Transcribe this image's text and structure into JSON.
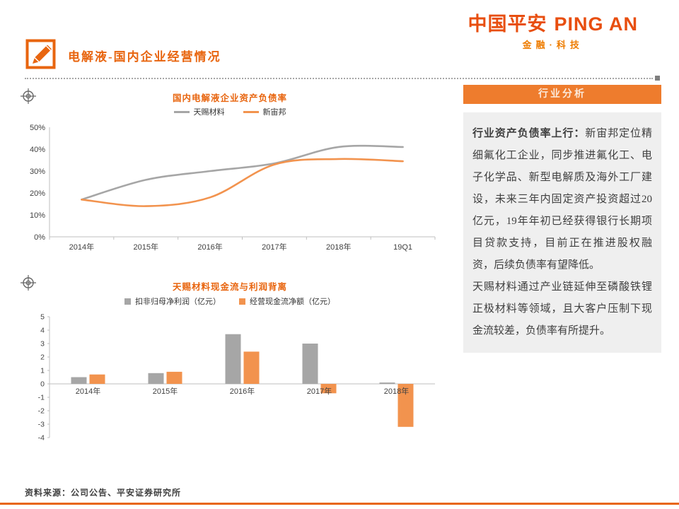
{
  "logo": {
    "cn": "中国平安",
    "en": "PING AN",
    "tagline": "金融·科技"
  },
  "header": {
    "title": "电解液-国内企业经营情况"
  },
  "colors": {
    "accent_orange": "#E8650F",
    "series_orange": "#F2934E",
    "series_gray": "#A6A6A6",
    "panel_header_bg": "#EE7C2D",
    "panel_body_bg": "#EFEFEF"
  },
  "icons": {
    "header": "pencil-icon",
    "section": "compass-icon"
  },
  "side": {
    "panel_title": "行业分析",
    "p1_bold": "行业资产负债率上行：",
    "p1": "新宙邦定位精细氟化工企业，同步推进氟化工、电子化学品、新型电解质及海外工厂建设，未来三年内固定资产投资超过20亿元，19年年初已经获得银行长期项目贷款支持，目前正在推进股权融资，后续负债率有望降低。",
    "p2": "天赐材料通过产业链延伸至磷酸铁锂正极材料等领域，且大客户压制下现金流较差，负债率有所提升。"
  },
  "footer": {
    "source": "资料来源：公司公告、平安证券研究所"
  },
  "chart_data": [
    {
      "type": "line",
      "title": "国内电解液企业资产负债率",
      "categories": [
        "2014年",
        "2015年",
        "2016年",
        "2017年",
        "2018年",
        "19Q1"
      ],
      "series": [
        {
          "name": "天赐材料",
          "color": "#A6A6A6",
          "values": [
            17,
            26,
            30,
            33.5,
            41,
            41
          ]
        },
        {
          "name": "新宙邦",
          "color": "#F2934E",
          "values": [
            17,
            14,
            18,
            33,
            35.5,
            34.5
          ]
        }
      ],
      "ylim": [
        0,
        50
      ],
      "yticks": [
        "0%",
        "10%",
        "20%",
        "30%",
        "40%",
        "50%"
      ],
      "ylabel": "",
      "xlabel": "",
      "grid": false,
      "legend_position": "top"
    },
    {
      "type": "bar",
      "title": "天赐材料现金流与利润背离",
      "categories": [
        "2014年",
        "2015年",
        "2016年",
        "2017年",
        "2018年"
      ],
      "series": [
        {
          "name": "扣非归母净利润（亿元）",
          "color": "#A6A6A6",
          "values": [
            0.5,
            0.8,
            3.7,
            3.0,
            0.1
          ]
        },
        {
          "name": "经营现金流净额（亿元）",
          "color": "#F2934E",
          "values": [
            0.7,
            0.9,
            2.4,
            -0.7,
            -3.2
          ]
        }
      ],
      "ylim": [
        -4,
        5
      ],
      "yticks": [
        5,
        4,
        3,
        2,
        1,
        0,
        -1,
        -2,
        -3,
        -4
      ],
      "ylabel": "",
      "xlabel": "",
      "grid": false,
      "legend_position": "top"
    }
  ]
}
